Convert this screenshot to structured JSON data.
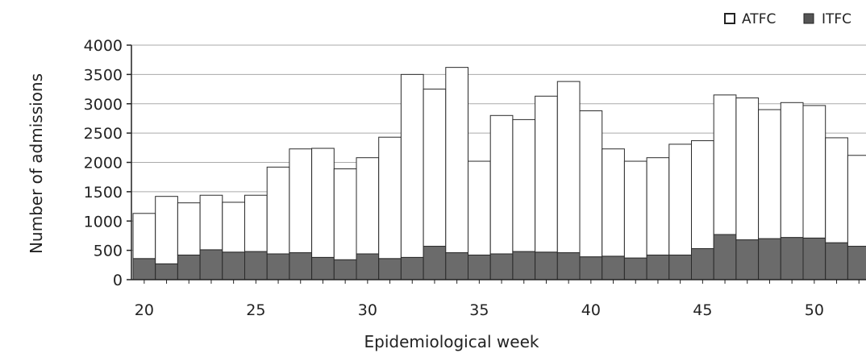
{
  "chart_data": {
    "type": "bar",
    "stacked": true,
    "x": [
      20,
      21,
      22,
      23,
      24,
      25,
      26,
      27,
      28,
      29,
      30,
      31,
      32,
      33,
      34,
      35,
      36,
      37,
      38,
      39,
      40,
      41,
      42,
      43,
      44,
      45,
      46,
      47,
      48,
      49,
      50,
      51,
      52
    ],
    "series": [
      {
        "name": "ITFC",
        "color": "#6b6b6b",
        "values": [
          360,
          270,
          420,
          510,
          470,
          480,
          440,
          460,
          380,
          340,
          440,
          360,
          380,
          570,
          460,
          420,
          440,
          480,
          470,
          460,
          390,
          400,
          370,
          420,
          420,
          530,
          770,
          680,
          700,
          720,
          710,
          630,
          570
        ]
      },
      {
        "name": "ATFC",
        "color": "#ffffff",
        "values": [
          770,
          1150,
          890,
          930,
          850,
          960,
          1480,
          1770,
          1860,
          1550,
          1640,
          2070,
          3120,
          2680,
          3160,
          1600,
          2360,
          2250,
          2660,
          2920,
          2490,
          1830,
          1650,
          1660,
          1890,
          1840,
          2380,
          2420,
          2200,
          2300,
          2260,
          1790,
          1550
        ]
      }
    ],
    "totals": [
      1130,
      1420,
      1310,
      1440,
      1320,
      1440,
      1920,
      2230,
      2240,
      1890,
      2080,
      2430,
      3500,
      3250,
      3620,
      2020,
      2800,
      2730,
      3130,
      3380,
      2880,
      2230,
      2020,
      2080,
      2310,
      2370,
      3150,
      3100,
      2900,
      3020,
      2970,
      2420,
      2120
    ],
    "xlabel": "Epidemiological week",
    "ylabel": "Number of admissions",
    "ylim": [
      0,
      4000
    ],
    "yticks": [
      0,
      500,
      1000,
      1500,
      2000,
      2500,
      3000,
      3500,
      4000
    ],
    "xticks": [
      20,
      25,
      30,
      35,
      40,
      45,
      50
    ],
    "grid": true,
    "legend_position": "top-right"
  }
}
